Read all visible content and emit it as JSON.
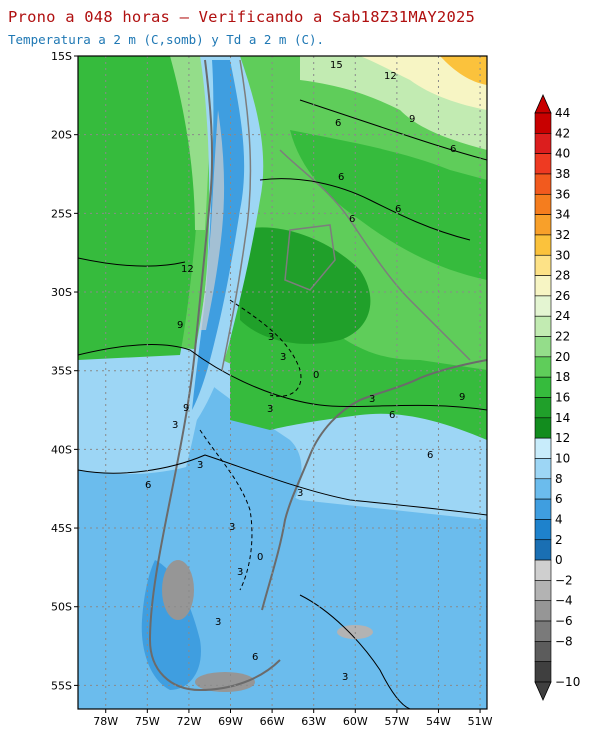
{
  "header": {
    "title": "Prono a 048 horas — Verificando a Sab18Z31MAY2025",
    "subtitle": "Temperatura a 2 m (C,somb) y Td a 2 m (C)."
  },
  "map": {
    "lat_labels": [
      "15S",
      "20S",
      "25S",
      "30S",
      "35S",
      "40S",
      "45S",
      "50S",
      "55S"
    ],
    "lat_values": [
      -15,
      -20,
      -25,
      -30,
      -35,
      -40,
      -45,
      -50,
      -55
    ],
    "lon_labels": [
      "78W",
      "75W",
      "72W",
      "69W",
      "66W",
      "63W",
      "60W",
      "57W",
      "54W",
      "51W"
    ],
    "lon_values": [
      -78,
      -75,
      -72,
      -69,
      -66,
      -63,
      -60,
      -57,
      -54,
      -51
    ],
    "lat_range": [
      -56.5,
      -15
    ],
    "lon_range": [
      -80,
      -50.5
    ],
    "contour_labels": [
      "15",
      "12",
      "9",
      "6",
      "6",
      "6",
      "6",
      "6",
      "12",
      "9",
      "3",
      "3",
      "0",
      "3",
      "9",
      "6",
      "6",
      "9",
      "3",
      "3",
      "6",
      "3",
      "0",
      "3",
      "3",
      "6",
      "3",
      "3",
      "3"
    ]
  },
  "colorbar": {
    "labels": [
      "44",
      "42",
      "40",
      "38",
      "36",
      "34",
      "32",
      "30",
      "28",
      "26",
      "24",
      "22",
      "20",
      "18",
      "16",
      "14",
      "12",
      "10",
      "8",
      "6",
      "4",
      "2",
      "0",
      "−2",
      "−4",
      "−6",
      "−8",
      "−10"
    ],
    "colors": [
      "#c80000",
      "#dc1e1e",
      "#ee3a22",
      "#f25a1e",
      "#f57d1e",
      "#f8a02a",
      "#fbc23c",
      "#fde287",
      "#f7f5c4",
      "#e4f5d2",
      "#c2ebb2",
      "#94dd8a",
      "#5fcd5a",
      "#36bb3d",
      "#20a02a",
      "#128c1e",
      "#c8ecfb",
      "#9dd6f5",
      "#6bbced",
      "#3f9ee0",
      "#1e82cc",
      "#1a6fb3",
      "#cfcfcf",
      "#b3b3b3",
      "#969696",
      "#7a7a7a",
      "#5c5c5c",
      "#3f3f3f"
    ]
  }
}
